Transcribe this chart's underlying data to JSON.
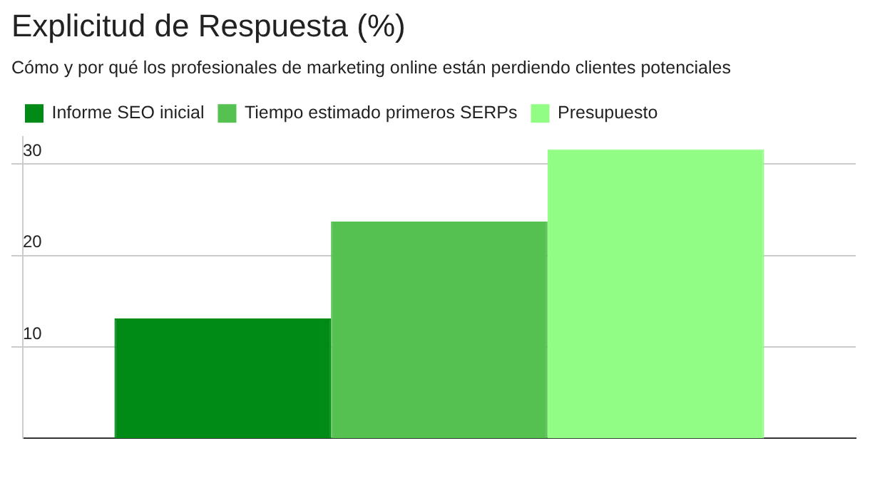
{
  "chart_data": {
    "type": "bar",
    "title": "Explicitud de Respuesta (%)",
    "subtitle": "Cómo y por qué los profesionales de marketing online están perdiendo clientes potenciales",
    "categories": [
      null
    ],
    "series": [
      {
        "name": "Informe SEO inicial",
        "color": "#008a16",
        "values": [
          13.1
        ]
      },
      {
        "name": "Tiempo estimado primeros SERPs",
        "color": "#55c151",
        "values": [
          23.7
        ]
      },
      {
        "name": "Presupuesto",
        "color": "#92fd84",
        "values": [
          31.6
        ]
      }
    ],
    "ylim": [
      0,
      33
    ],
    "yticks": [
      10,
      20,
      30
    ],
    "grid": "y",
    "legend": "top left"
  }
}
